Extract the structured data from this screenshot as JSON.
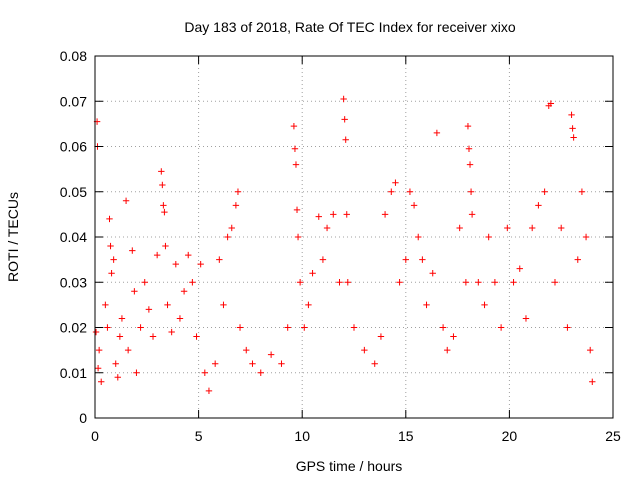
{
  "chart_data": {
    "type": "scatter",
    "title": "Day 183 of 2018, Rate Of TEC Index for receiver xixo",
    "xlabel": "GPS time / hours",
    "ylabel": "ROTI / TECUs",
    "xlim": [
      0,
      25
    ],
    "ylim": [
      0,
      0.08
    ],
    "xticks": [
      0,
      5,
      10,
      15,
      20,
      25
    ],
    "yticks": [
      0,
      0.01,
      0.02,
      0.03,
      0.04,
      0.05,
      0.06,
      0.07,
      0.08
    ],
    "xtick_labels": [
      "0",
      "5",
      "10",
      "15",
      "20",
      "25"
    ],
    "ytick_labels": [
      "0",
      "0.01",
      "0.02",
      "0.03",
      "0.04",
      "0.05",
      "0.06",
      "0.07",
      "0.08"
    ],
    "grid": true,
    "marker": "+",
    "marker_color": "#ff0000",
    "series": [
      {
        "name": "ROTI",
        "points": [
          [
            0.1,
            0.0655
          ],
          [
            0.12,
            0.06
          ],
          [
            0.05,
            0.019
          ],
          [
            0.2,
            0.015
          ],
          [
            0.3,
            0.008
          ],
          [
            0.15,
            0.011
          ],
          [
            0.5,
            0.025
          ],
          [
            0.6,
            0.02
          ],
          [
            0.7,
            0.044
          ],
          [
            0.75,
            0.038
          ],
          [
            0.8,
            0.032
          ],
          [
            0.9,
            0.035
          ],
          [
            1.0,
            0.012
          ],
          [
            1.1,
            0.009
          ],
          [
            1.2,
            0.018
          ],
          [
            1.3,
            0.022
          ],
          [
            1.5,
            0.048
          ],
          [
            1.6,
            0.015
          ],
          [
            1.8,
            0.037
          ],
          [
            1.9,
            0.028
          ],
          [
            2.0,
            0.01
          ],
          [
            2.2,
            0.02
          ],
          [
            2.4,
            0.03
          ],
          [
            2.6,
            0.024
          ],
          [
            2.8,
            0.018
          ],
          [
            3.0,
            0.036
          ],
          [
            3.2,
            0.0545
          ],
          [
            3.25,
            0.0515
          ],
          [
            3.3,
            0.047
          ],
          [
            3.35,
            0.0455
          ],
          [
            3.4,
            0.038
          ],
          [
            3.5,
            0.025
          ],
          [
            3.7,
            0.019
          ],
          [
            3.9,
            0.034
          ],
          [
            4.1,
            0.022
          ],
          [
            4.3,
            0.028
          ],
          [
            4.5,
            0.036
          ],
          [
            4.7,
            0.03
          ],
          [
            4.9,
            0.018
          ],
          [
            5.1,
            0.034
          ],
          [
            5.3,
            0.01
          ],
          [
            5.5,
            0.006
          ],
          [
            5.8,
            0.012
          ],
          [
            6.0,
            0.035
          ],
          [
            6.2,
            0.025
          ],
          [
            6.4,
            0.04
          ],
          [
            6.6,
            0.042
          ],
          [
            6.8,
            0.047
          ],
          [
            6.9,
            0.05
          ],
          [
            7.0,
            0.02
          ],
          [
            7.3,
            0.015
          ],
          [
            7.6,
            0.012
          ],
          [
            8.0,
            0.01
          ],
          [
            8.5,
            0.014
          ],
          [
            9.0,
            0.012
          ],
          [
            9.3,
            0.02
          ],
          [
            9.6,
            0.0645
          ],
          [
            9.65,
            0.0595
          ],
          [
            9.7,
            0.056
          ],
          [
            9.75,
            0.046
          ],
          [
            9.8,
            0.04
          ],
          [
            9.9,
            0.03
          ],
          [
            10.1,
            0.02
          ],
          [
            10.3,
            0.025
          ],
          [
            10.5,
            0.032
          ],
          [
            10.8,
            0.0445
          ],
          [
            11.0,
            0.035
          ],
          [
            11.2,
            0.042
          ],
          [
            11.5,
            0.045
          ],
          [
            11.8,
            0.03
          ],
          [
            12.0,
            0.0705
          ],
          [
            12.05,
            0.066
          ],
          [
            12.1,
            0.0615
          ],
          [
            12.15,
            0.045
          ],
          [
            12.2,
            0.03
          ],
          [
            12.5,
            0.02
          ],
          [
            13.0,
            0.015
          ],
          [
            13.5,
            0.012
          ],
          [
            13.8,
            0.018
          ],
          [
            14.0,
            0.045
          ],
          [
            14.3,
            0.05
          ],
          [
            14.5,
            0.052
          ],
          [
            14.7,
            0.03
          ],
          [
            15.0,
            0.035
          ],
          [
            15.2,
            0.05
          ],
          [
            15.4,
            0.047
          ],
          [
            15.6,
            0.04
          ],
          [
            15.8,
            0.035
          ],
          [
            16.0,
            0.025
          ],
          [
            16.3,
            0.032
          ],
          [
            16.5,
            0.063
          ],
          [
            16.8,
            0.02
          ],
          [
            17.0,
            0.015
          ],
          [
            17.3,
            0.018
          ],
          [
            17.6,
            0.042
          ],
          [
            17.9,
            0.03
          ],
          [
            18.0,
            0.0645
          ],
          [
            18.05,
            0.0595
          ],
          [
            18.1,
            0.056
          ],
          [
            18.15,
            0.05
          ],
          [
            18.2,
            0.045
          ],
          [
            18.5,
            0.03
          ],
          [
            18.8,
            0.025
          ],
          [
            19.0,
            0.04
          ],
          [
            19.3,
            0.03
          ],
          [
            19.6,
            0.02
          ],
          [
            19.9,
            0.042
          ],
          [
            20.2,
            0.03
          ],
          [
            20.5,
            0.033
          ],
          [
            20.8,
            0.022
          ],
          [
            21.1,
            0.042
          ],
          [
            21.4,
            0.047
          ],
          [
            21.7,
            0.05
          ],
          [
            21.9,
            0.069
          ],
          [
            22.0,
            0.0695
          ],
          [
            22.2,
            0.03
          ],
          [
            22.5,
            0.042
          ],
          [
            22.8,
            0.02
          ],
          [
            23.0,
            0.067
          ],
          [
            23.05,
            0.064
          ],
          [
            23.1,
            0.062
          ],
          [
            23.3,
            0.035
          ],
          [
            23.5,
            0.05
          ],
          [
            23.7,
            0.04
          ],
          [
            23.9,
            0.015
          ],
          [
            24.0,
            0.008
          ]
        ]
      }
    ]
  }
}
